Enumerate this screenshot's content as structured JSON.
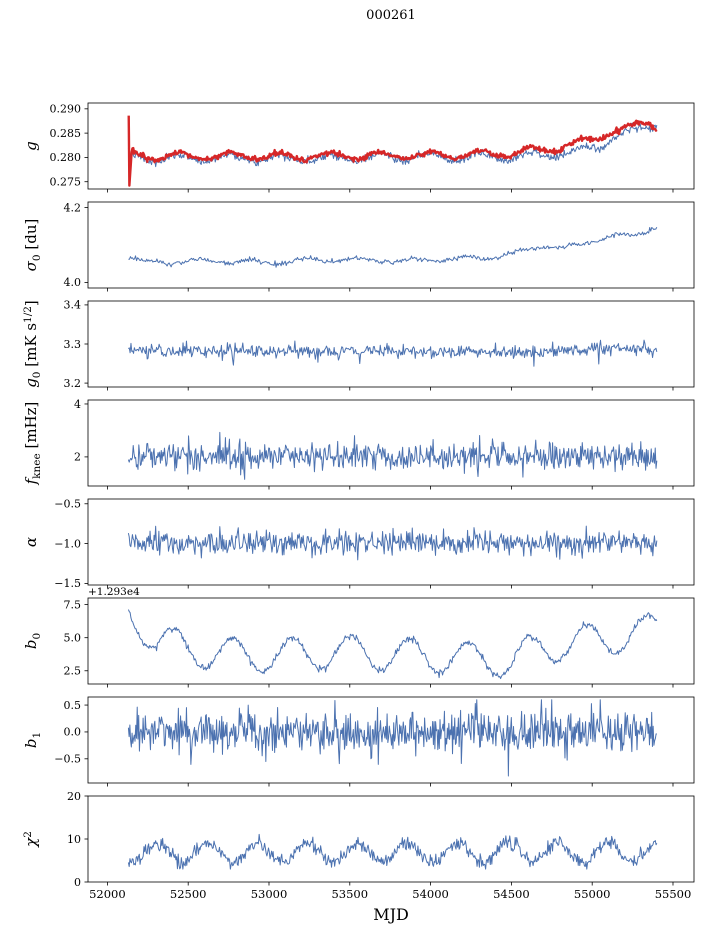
{
  "title": "000261",
  "xlabel": "MJD",
  "colors": {
    "blue": "#4c72b0",
    "red": "#d62728",
    "axis": "#000000"
  },
  "axes": {
    "xlim": [
      51880,
      55630
    ],
    "xticks": [
      52000,
      52500,
      53000,
      53500,
      54000,
      54500,
      55000,
      55500
    ],
    "xtick_labels": [
      "52000",
      "52500",
      "53000",
      "53500",
      "54000",
      "54500",
      "55000",
      "55500"
    ],
    "data_xrange": [
      52130,
      55400
    ]
  },
  "chart_data": [
    {
      "name": "g",
      "type": "line",
      "ylabel": [
        {
          "t": "g",
          "it": true
        }
      ],
      "ylim": [
        0.2735,
        0.2912
      ],
      "yticks": [
        0.275,
        0.28,
        0.285,
        0.29
      ],
      "ytick_labels": [
        "0.275",
        "0.280",
        "0.285",
        "0.290"
      ],
      "series": [
        {
          "name": "g-fit",
          "color": "blue",
          "width": 1.0,
          "seed": 7,
          "n": 640,
          "noise": 0.0004,
          "osc": {
            "period": 310,
            "amp": 0.0008,
            "phase": 52060
          },
          "keypoints": [
            [
              52130,
              0.28
            ],
            [
              52300,
              0.2797
            ],
            [
              52700,
              0.2799
            ],
            [
              53200,
              0.2798
            ],
            [
              53700,
              0.28
            ],
            [
              54200,
              0.28
            ],
            [
              54600,
              0.2803
            ],
            [
              54900,
              0.281
            ],
            [
              55050,
              0.2825
            ],
            [
              55150,
              0.2845
            ],
            [
              55250,
              0.2852
            ],
            [
              55320,
              0.286
            ],
            [
              55400,
              0.2872
            ]
          ]
        },
        {
          "name": "g-raw",
          "color": "red",
          "width": 2.4,
          "seed": 13,
          "n": 640,
          "noise": 0.00028,
          "osc": {
            "period": 310,
            "amp": 0.0007,
            "phase": 52060
          },
          "xrange": [
            52150,
            55400
          ],
          "prepend": [
            [
              52132,
              0.2886
            ],
            [
              52136,
              0.2742
            ]
          ],
          "keypoints": [
            [
              52150,
              0.2806
            ],
            [
              52300,
              0.2801
            ],
            [
              52700,
              0.2803
            ],
            [
              53200,
              0.2802
            ],
            [
              53700,
              0.2804
            ],
            [
              54200,
              0.2805
            ],
            [
              54500,
              0.2808
            ],
            [
              54800,
              0.282
            ],
            [
              55000,
              0.2838
            ],
            [
              55100,
              0.2852
            ],
            [
              55200,
              0.2858
            ],
            [
              55300,
              0.2868
            ],
            [
              55350,
              0.2872
            ],
            [
              55400,
              0.286
            ]
          ]
        }
      ]
    },
    {
      "name": "sigma0",
      "type": "line",
      "ylabel": [
        {
          "t": "σ",
          "it": true
        },
        {
          "t": "0",
          "sub": true
        },
        {
          "t": " [du]"
        }
      ],
      "ylim": [
        3.985,
        4.215
      ],
      "yticks": [
        4.0,
        4.2
      ],
      "ytick_labels": [
        "4.0",
        "4.2"
      ],
      "series": [
        {
          "name": "sigma0",
          "color": "blue",
          "width": 1.0,
          "seed": 21,
          "n": 520,
          "noise": 0.0035,
          "osc": {
            "period": 330,
            "amp": 0.005,
            "phase": 52150
          },
          "keypoints": [
            [
              52130,
              4.068
            ],
            [
              52250,
              4.052
            ],
            [
              52600,
              4.058
            ],
            [
              53000,
              4.053
            ],
            [
              53400,
              4.062
            ],
            [
              53800,
              4.058
            ],
            [
              54100,
              4.062
            ],
            [
              54400,
              4.068
            ],
            [
              54550,
              4.08
            ],
            [
              54700,
              4.098
            ],
            [
              54850,
              4.092
            ],
            [
              55000,
              4.11
            ],
            [
              55150,
              4.128
            ],
            [
              55250,
              4.12
            ],
            [
              55350,
              4.14
            ],
            [
              55400,
              4.15
            ]
          ]
        }
      ]
    },
    {
      "name": "g0",
      "type": "line",
      "ylabel": [
        {
          "t": "g",
          "it": true
        },
        {
          "t": "0",
          "sub": true
        },
        {
          "t": " [mK s"
        },
        {
          "t": "1/2",
          "sup": true
        },
        {
          "t": "]"
        }
      ],
      "ylim": [
        3.19,
        3.41
      ],
      "yticks": [
        3.2,
        3.3,
        3.4
      ],
      "ytick_labels": [
        "3.2",
        "3.3",
        "3.4"
      ],
      "series": [
        {
          "name": "g0",
          "color": "blue",
          "width": 1.0,
          "seed": 31,
          "n": 620,
          "noise": 0.0085,
          "keypoints": [
            [
              52130,
              3.284
            ],
            [
              53000,
              3.281
            ],
            [
              54000,
              3.282
            ],
            [
              54700,
              3.28
            ],
            [
              55100,
              3.29
            ],
            [
              55400,
              3.286
            ]
          ],
          "clamp": [
            3.2,
            3.38
          ],
          "spikes": [
            {
              "x": 52780,
              "y": 3.246
            },
            {
              "x": 53560,
              "y": 3.25
            },
            {
              "x": 54640,
              "y": 3.243
            },
            {
              "x": 55040,
              "y": 3.249
            }
          ]
        }
      ]
    },
    {
      "name": "fknee",
      "type": "line",
      "ylabel": [
        {
          "t": "f",
          "it": true
        },
        {
          "t": "knee",
          "sub": true
        },
        {
          "t": " [mHz]"
        }
      ],
      "ylim": [
        0.9,
        4.15
      ],
      "yticks": [
        2,
        4
      ],
      "ytick_labels": [
        "2",
        "4"
      ],
      "series": [
        {
          "name": "fknee",
          "color": "blue",
          "width": 1.0,
          "seed": 41,
          "n": 660,
          "noise": 0.27,
          "keypoints": [
            [
              52130,
              2.05
            ],
            [
              55400,
              2.0
            ]
          ],
          "clamp": [
            1.15,
            3.6
          ]
        }
      ]
    },
    {
      "name": "alpha",
      "type": "line",
      "ylabel": [
        {
          "t": "α",
          "it": true
        }
      ],
      "ylim": [
        -1.52,
        -0.44
      ],
      "yticks": [
        -1.5,
        -1.0,
        -0.5
      ],
      "ytick_labels": [
        "−1.5",
        "−1.0",
        "−0.5"
      ],
      "series": [
        {
          "name": "alpha",
          "color": "blue",
          "width": 1.0,
          "seed": 51,
          "n": 660,
          "noise": 0.075,
          "keypoints": [
            [
              52130,
              -1.0
            ],
            [
              55400,
              -1.0
            ]
          ],
          "clamp": [
            -1.45,
            -0.55
          ]
        }
      ]
    },
    {
      "name": "b0",
      "type": "line",
      "ylabel": [
        {
          "t": "b",
          "it": true
        },
        {
          "t": "0",
          "sub": true
        }
      ],
      "offset_text": "+1.293e4",
      "ylim": [
        1.5,
        8.0
      ],
      "yticks": [
        2.5,
        5.0,
        7.5
      ],
      "ytick_labels": [
        "2.5",
        "5.0",
        "7.5"
      ],
      "series": [
        {
          "name": "b0",
          "color": "blue",
          "width": 1.0,
          "seed": 61,
          "n": 620,
          "noise": 0.13,
          "osc": {
            "period": 365,
            "amp": 1.25,
            "phase": 52320
          },
          "keypoints": [
            [
              52130,
              7.0
            ],
            [
              52300,
              4.8
            ],
            [
              52600,
              3.9
            ],
            [
              53000,
              3.6
            ],
            [
              53400,
              3.9
            ],
            [
              53800,
              3.7
            ],
            [
              54200,
              3.5
            ],
            [
              54500,
              3.2
            ],
            [
              54700,
              4.3
            ],
            [
              54900,
              4.6
            ],
            [
              55100,
              5.0
            ],
            [
              55250,
              5.2
            ],
            [
              55400,
              5.6
            ]
          ],
          "clamp": [
            1.8,
            7.7
          ]
        }
      ]
    },
    {
      "name": "b1",
      "type": "line",
      "ylabel": [
        {
          "t": "b",
          "it": true
        },
        {
          "t": "1",
          "sub": true
        }
      ],
      "ylim": [
        -0.95,
        0.65
      ],
      "yticks": [
        -0.5,
        0.0,
        0.5
      ],
      "ytick_labels": [
        "−0.5",
        "0.0",
        "0.5"
      ],
      "series": [
        {
          "name": "b1",
          "color": "blue",
          "width": 1.0,
          "seed": 71,
          "n": 720,
          "noise": 0.2,
          "keypoints": [
            [
              52130,
              0.0
            ],
            [
              55400,
              0.0
            ]
          ],
          "clamp": [
            -0.62,
            0.6
          ],
          "spikes": [
            {
              "x": 54480,
              "y": -0.82
            }
          ]
        }
      ]
    },
    {
      "name": "chi2",
      "type": "line",
      "ylabel": [
        {
          "t": "χ",
          "it": true
        },
        {
          "t": "2",
          "sup": true
        }
      ],
      "ylim": [
        0,
        20
      ],
      "yticks": [
        0,
        10,
        20
      ],
      "ytick_labels": [
        "0",
        "10",
        "20"
      ],
      "series": [
        {
          "name": "chi2",
          "color": "blue",
          "width": 1.0,
          "seed": 81,
          "n": 680,
          "noise": 0.8,
          "osc": {
            "period": 310,
            "amp": 2.3,
            "phase": 52230
          },
          "keypoints": [
            [
              52130,
              6.8
            ],
            [
              55400,
              7.0
            ]
          ],
          "clamp": [
            3.0,
            12.5
          ]
        }
      ]
    }
  ]
}
